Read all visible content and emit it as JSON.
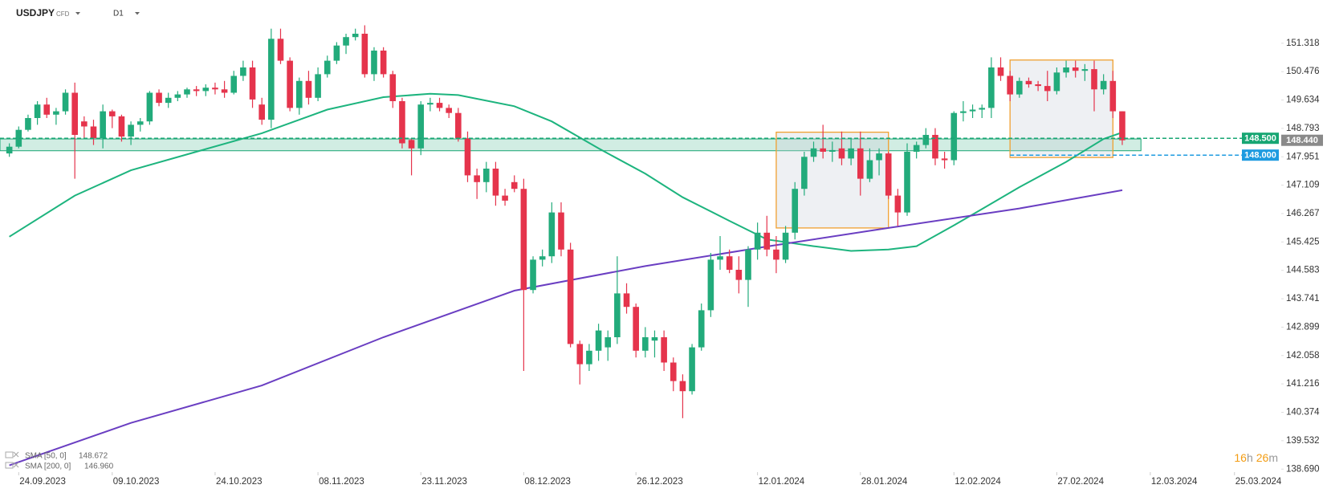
{
  "chart_data": {
    "type": "candlestick",
    "symbol": "USDJPY",
    "symbol_type": "CFD",
    "timeframe": "D1",
    "up_color": "#22ab7b",
    "down_color": "#e5344c",
    "x": [
      "2023-09-22",
      "2023-09-25",
      "2023-09-26",
      "2023-09-27",
      "2023-09-28",
      "2023-09-29",
      "2023-10-02",
      "2023-10-03",
      "2023-10-04",
      "2023-10-05",
      "2023-10-06",
      "2023-10-09",
      "2023-10-10",
      "2023-10-11",
      "2023-10-12",
      "2023-10-13",
      "2023-10-16",
      "2023-10-17",
      "2023-10-18",
      "2023-10-19",
      "2023-10-20",
      "2023-10-23",
      "2023-10-24",
      "2023-10-25",
      "2023-10-26",
      "2023-10-27",
      "2023-10-30",
      "2023-10-31",
      "2023-11-01",
      "2023-11-02",
      "2023-11-03",
      "2023-11-06",
      "2023-11-07",
      "2023-11-08",
      "2023-11-09",
      "2023-11-10",
      "2023-11-13",
      "2023-11-14",
      "2023-11-15",
      "2023-11-16",
      "2023-11-17",
      "2023-11-20",
      "2023-11-21",
      "2023-11-22",
      "2023-11-23",
      "2023-11-24",
      "2023-11-27",
      "2023-11-28",
      "2023-11-29",
      "2023-11-30",
      "2023-12-01",
      "2023-12-04",
      "2023-12-05",
      "2023-12-06",
      "2023-12-07",
      "2023-12-08",
      "2023-12-11",
      "2023-12-12",
      "2023-12-13",
      "2023-12-14",
      "2023-12-15",
      "2023-12-18",
      "2023-12-19",
      "2023-12-20",
      "2023-12-21",
      "2023-12-22",
      "2023-12-25",
      "2023-12-26",
      "2023-12-27",
      "2023-12-28",
      "2023-12-29",
      "2024-01-01",
      "2024-01-02",
      "2024-01-03",
      "2024-01-04",
      "2024-01-05",
      "2024-01-08",
      "2024-01-09",
      "2024-01-10",
      "2024-01-11",
      "2024-01-12",
      "2024-01-15",
      "2024-01-16",
      "2024-01-17",
      "2024-01-18",
      "2024-01-19",
      "2024-01-22",
      "2024-01-23",
      "2024-01-24",
      "2024-01-25",
      "2024-01-26",
      "2024-01-29",
      "2024-01-30",
      "2024-01-31",
      "2024-02-01",
      "2024-02-02",
      "2024-02-05",
      "2024-02-06",
      "2024-02-07",
      "2024-02-08",
      "2024-02-09",
      "2024-02-12",
      "2024-02-13",
      "2024-02-14",
      "2024-02-15",
      "2024-02-16",
      "2024-02-19",
      "2024-02-20",
      "2024-02-21",
      "2024-02-22",
      "2024-02-23",
      "2024-02-26",
      "2024-02-27",
      "2024-02-28",
      "2024-02-29",
      "2024-03-01",
      "2024-03-04",
      "2024-03-05",
      "2024-03-06",
      "2024-03-07"
    ],
    "open": [
      148.05,
      148.25,
      148.75,
      149.1,
      149.5,
      149.2,
      149.3,
      149.85,
      149.0,
      148.85,
      148.5,
      149.3,
      149.15,
      148.55,
      148.9,
      149.0,
      149.85,
      149.55,
      149.7,
      149.8,
      149.95,
      149.9,
      150.0,
      149.95,
      149.85,
      150.35,
      150.6,
      149.5,
      149.05,
      151.45,
      150.8,
      149.4,
      150.2,
      149.7,
      150.4,
      150.8,
      151.25,
      151.5,
      151.6,
      150.4,
      151.1,
      150.4,
      149.6,
      148.45,
      148.2,
      149.5,
      149.55,
      149.4,
      149.25,
      148.5,
      147.4,
      147.2,
      147.6,
      146.8,
      147.2,
      147.0,
      144.0,
      144.9,
      145.0,
      146.3,
      145.2,
      142.4,
      141.8,
      142.2,
      142.3,
      142.6,
      143.9,
      143.5,
      142.2,
      142.5,
      142.6,
      141.85,
      141.3,
      141.0,
      142.3,
      143.4,
      144.9,
      145.0,
      144.6,
      144.3,
      145.2,
      145.7,
      145.2,
      144.9,
      145.7,
      147.0,
      147.95,
      148.2,
      148.1,
      148.2,
      147.9,
      148.2,
      147.3,
      147.85,
      148.05,
      146.8,
      146.3,
      148.1,
      148.3,
      148.6,
      147.9,
      147.85,
      149.25,
      149.3,
      149.35,
      149.4,
      150.6,
      150.35,
      149.8,
      150.2,
      150.1,
      150.05,
      149.9,
      150.45,
      150.6,
      150.5,
      150.55,
      149.95,
      150.2,
      149.3
    ],
    "high": [
      148.35,
      148.85,
      149.2,
      149.6,
      149.7,
      149.4,
      149.95,
      150.15,
      149.15,
      149.05,
      149.5,
      149.35,
      149.2,
      149.0,
      149.1,
      149.9,
      149.95,
      149.85,
      149.9,
      150.0,
      150.05,
      150.1,
      150.15,
      150.2,
      150.5,
      150.8,
      150.8,
      149.7,
      151.75,
      151.75,
      150.9,
      150.3,
      150.5,
      150.6,
      150.95,
      151.35,
      151.6,
      151.75,
      151.85,
      151.2,
      151.2,
      150.5,
      149.7,
      148.5,
      149.6,
      149.7,
      149.7,
      149.5,
      149.4,
      148.7,
      147.6,
      147.8,
      147.8,
      147.0,
      147.4,
      147.3,
      145.0,
      145.2,
      146.6,
      146.6,
      145.4,
      142.5,
      142.4,
      143.0,
      142.8,
      145.0,
      144.2,
      143.6,
      142.9,
      142.8,
      142.8,
      142.0,
      141.5,
      142.4,
      143.6,
      145.1,
      145.6,
      145.2,
      145.0,
      145.3,
      146.0,
      146.2,
      145.6,
      145.9,
      147.2,
      148.1,
      148.4,
      148.9,
      148.4,
      148.7,
      148.5,
      148.7,
      148.2,
      148.2,
      148.1,
      147.0,
      148.35,
      148.4,
      148.8,
      148.8,
      148.1,
      149.3,
      149.6,
      149.5,
      149.5,
      150.9,
      150.9,
      150.5,
      150.3,
      150.3,
      150.2,
      150.5,
      150.6,
      150.8,
      150.8,
      150.7,
      150.8,
      150.4,
      150.5,
      149.3
    ],
    "low": [
      147.95,
      148.2,
      148.7,
      148.9,
      149.1,
      148.9,
      149.2,
      147.3,
      148.5,
      148.3,
      148.2,
      148.8,
      148.4,
      148.3,
      148.7,
      148.9,
      149.45,
      149.4,
      149.6,
      149.7,
      149.75,
      149.75,
      149.8,
      149.7,
      149.8,
      150.2,
      149.4,
      148.9,
      148.8,
      150.7,
      149.3,
      149.2,
      149.5,
      149.6,
      150.3,
      150.7,
      151.0,
      151.4,
      150.3,
      150.2,
      150.3,
      149.4,
      148.2,
      147.4,
      148.0,
      149.3,
      149.3,
      149.1,
      148.4,
      147.2,
      146.7,
      146.9,
      146.5,
      146.5,
      146.9,
      141.6,
      143.9,
      144.7,
      144.8,
      145.0,
      142.3,
      141.2,
      141.6,
      141.9,
      141.9,
      142.4,
      143.3,
      142.0,
      142.0,
      142.0,
      141.6,
      141.0,
      140.2,
      140.9,
      142.2,
      143.2,
      144.6,
      144.5,
      143.9,
      143.5,
      144.9,
      145.0,
      144.5,
      144.8,
      145.5,
      146.8,
      147.8,
      147.9,
      147.8,
      147.7,
      147.7,
      146.8,
      147.2,
      147.4,
      146.7,
      145.9,
      146.2,
      147.9,
      148.2,
      147.7,
      147.6,
      147.7,
      149.0,
      149.1,
      149.1,
      149.1,
      150.2,
      149.6,
      149.7,
      150.0,
      149.9,
      149.6,
      149.8,
      150.3,
      150.3,
      150.2,
      149.3,
      149.8,
      149.1,
      148.3
    ],
    "close": [
      148.25,
      148.75,
      149.1,
      149.5,
      149.2,
      149.3,
      149.85,
      148.6,
      148.85,
      148.5,
      149.3,
      149.15,
      148.55,
      148.9,
      149.0,
      149.85,
      149.55,
      149.7,
      149.8,
      149.95,
      149.9,
      150.0,
      149.95,
      149.85,
      150.35,
      150.6,
      149.65,
      149.05,
      151.45,
      150.8,
      149.4,
      150.2,
      149.7,
      150.4,
      150.8,
      151.25,
      151.5,
      151.6,
      150.4,
      151.1,
      150.4,
      149.6,
      148.35,
      148.2,
      149.5,
      149.55,
      149.4,
      149.25,
      148.5,
      147.4,
      147.2,
      147.6,
      146.8,
      146.65,
      147.0,
      144.0,
      144.9,
      145.0,
      146.3,
      145.2,
      142.4,
      141.8,
      142.2,
      142.8,
      142.6,
      143.9,
      143.5,
      142.2,
      142.6,
      142.6,
      141.85,
      141.3,
      141.0,
      142.3,
      143.4,
      144.9,
      145.0,
      144.6,
      144.3,
      145.2,
      145.7,
      145.2,
      144.9,
      145.7,
      147.0,
      147.95,
      148.2,
      148.1,
      148.15,
      147.9,
      148.2,
      147.3,
      147.85,
      148.05,
      146.8,
      146.3,
      148.1,
      148.3,
      148.6,
      147.9,
      147.85,
      149.25,
      149.3,
      149.35,
      149.4,
      150.6,
      150.35,
      149.8,
      150.2,
      150.1,
      150.05,
      149.9,
      150.45,
      150.6,
      150.5,
      150.55,
      149.95,
      150.2,
      149.3,
      148.44
    ],
    "series": [
      {
        "name": "SMA [50, 0]",
        "color": "#1db47e",
        "value_label": "148.672",
        "x": [
          "2023-09-22",
          "2023-10-03",
          "2023-10-11",
          "2023-10-20",
          "2023-10-31",
          "2023-11-09",
          "2023-11-17",
          "2023-11-24",
          "2023-11-29",
          "2023-12-07",
          "2023-12-13",
          "2023-12-20",
          "2023-12-27",
          "2024-01-02",
          "2024-01-09",
          "2024-01-15",
          "2024-01-22",
          "2024-01-26",
          "2024-02-01",
          "2024-02-06",
          "2024-02-12",
          "2024-02-15",
          "2024-02-21",
          "2024-02-28",
          "2024-03-05",
          "2024-03-07"
        ],
        "values": [
          145.58,
          146.8,
          147.55,
          148.1,
          148.65,
          149.35,
          149.72,
          149.82,
          149.78,
          149.45,
          149.0,
          148.2,
          147.45,
          146.75,
          146.05,
          145.5,
          145.3,
          145.16,
          145.2,
          145.3,
          145.92,
          146.4,
          147.05,
          147.8,
          148.48,
          148.672
        ]
      },
      {
        "name": "SMA [200, 0]",
        "color": "#6a3ec2",
        "value_label": "146.960",
        "x": [
          "2023-09-22",
          "2023-10-11",
          "2023-10-31",
          "2023-11-17",
          "2023-12-07",
          "2023-12-27",
          "2024-01-15",
          "2024-02-01",
          "2024-02-21",
          "2024-03-07"
        ],
        "values": [
          138.8,
          140.06,
          141.17,
          142.6,
          143.98,
          144.71,
          145.29,
          145.84,
          146.42,
          146.96
        ]
      }
    ],
    "zone": {
      "low": 148.13,
      "high": 148.48,
      "x_end": "2024-03-11",
      "color": "#17a673"
    },
    "boxes": [
      {
        "x": [
          "2024-01-16",
          "2024-02-01"
        ],
        "y": [
          145.84,
          148.68
        ],
        "color": "#f0a030"
      },
      {
        "x": [
          "2024-02-20",
          "2024-03-06"
        ],
        "y": [
          147.93,
          150.82
        ],
        "color": "#f0a030"
      }
    ],
    "price_lines": [
      {
        "value": 148.5,
        "label": "148.500",
        "color": "#17a673",
        "x_start": "2023-09-21"
      },
      {
        "value": 148.0,
        "label": "148.000",
        "color": "#1e9be0",
        "x_start": "2024-02-20"
      }
    ],
    "last_price": {
      "value": 148.44,
      "label": "148.440",
      "color": "#8a8a8a"
    },
    "countdown": {
      "hours": "16",
      "hours_unit": "h",
      "minutes": "26",
      "minutes_unit": "m"
    },
    "xlim": [
      "2023-09-21",
      "2024-04-01"
    ],
    "xticks": [
      {
        "value": "2023-09-24",
        "label": "24.09.2023"
      },
      {
        "value": "2023-10-09",
        "label": "09.10.2023"
      },
      {
        "value": "2023-10-24",
        "label": "24.10.2023"
      },
      {
        "value": "2023-11-08",
        "label": "08.11.2023"
      },
      {
        "value": "2023-11-23",
        "label": "23.11.2023"
      },
      {
        "value": "2023-12-08",
        "label": "08.12.2023"
      },
      {
        "value": "2023-12-26",
        "label": "26.12.2023"
      },
      {
        "value": "2024-01-12",
        "label": "12.01.2024"
      },
      {
        "value": "2024-01-28",
        "label": "28.01.2024"
      },
      {
        "value": "2024-02-12",
        "label": "12.02.2024"
      },
      {
        "value": "2024-02-27",
        "label": "27.02.2024"
      },
      {
        "value": "2024-03-12",
        "label": "12.03.2024"
      },
      {
        "value": "2024-03-25",
        "label": "25.03.2024"
      }
    ],
    "ylim": [
      138.6,
      152.6
    ],
    "yticks": [
      {
        "value": 138.69,
        "label": "138.690"
      },
      139.532,
      140.374,
      141.216,
      142.058,
      142.899,
      143.741,
      144.583,
      145.425,
      146.267,
      147.109,
      147.951,
      148.793,
      149.634,
      150.476,
      151.318
    ],
    "grid": false
  }
}
